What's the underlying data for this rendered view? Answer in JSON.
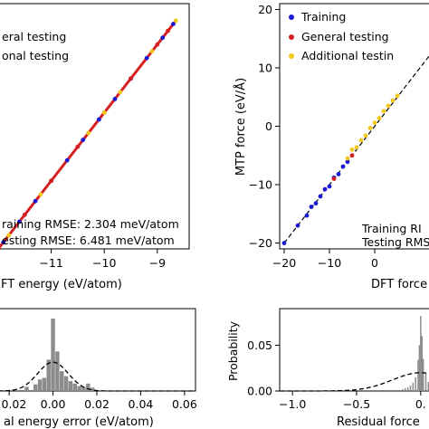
{
  "chart_data": [
    {
      "id": "energy-parity",
      "type": "scatter",
      "title": "",
      "xlabel": "DFT energy (eV/atom)",
      "xlabel_visible": "FT energy (eV/atom)",
      "ylabel": "",
      "xlim": [
        -12.0,
        -8.4
      ],
      "ylim": [
        -12.0,
        -8.4
      ],
      "xticks": [
        {
          "v": -11,
          "label": "−11"
        },
        {
          "v": -10,
          "label": "−10"
        },
        {
          "v": -9,
          "label": "−9"
        }
      ],
      "legend": {
        "placement": "top-left",
        "entries_visible": [
          "",
          "eral testing",
          "onal testing"
        ]
      },
      "annotations": [
        "raining RMSE: 2.304 meV/atom",
        "esting RMSE: 6.481 meV/atom"
      ],
      "series": [
        {
          "name": "Training",
          "color": "#1a1ad4",
          "x": [
            -11.9,
            -11.6,
            -11.3,
            -11.0,
            -10.7,
            -10.4,
            -10.1,
            -9.8,
            -9.5,
            -9.2,
            -8.9,
            -8.7
          ],
          "y": [
            -11.9,
            -11.6,
            -11.3,
            -11.0,
            -10.7,
            -10.4,
            -10.1,
            -9.8,
            -9.5,
            -9.2,
            -8.9,
            -8.7
          ]
        },
        {
          "name": "General testing",
          "color": "#d62020",
          "x": [
            -12.0,
            -11.5,
            -11.0,
            -10.5,
            -10.0,
            -9.5,
            -9.0,
            -8.8
          ],
          "y": [
            -12.0,
            -11.5,
            -11.0,
            -10.5,
            -10.0,
            -9.5,
            -9.0,
            -8.8
          ]
        },
        {
          "name": "Additional testing",
          "color": "#f2c81a",
          "x": [
            -11.8,
            -11.2,
            -10.3,
            -10.0,
            -9.7,
            -9.1,
            -8.65
          ],
          "y": [
            -11.8,
            -11.2,
            -10.3,
            -10.0,
            -9.7,
            -9.1,
            -8.65
          ]
        }
      ]
    },
    {
      "id": "force-parity",
      "type": "scatter",
      "title": "",
      "xlabel": "DFT force",
      "ylabel": "MTP force (eV/Å)",
      "xlim": [
        -21,
        13
      ],
      "ylim": [
        -21,
        21
      ],
      "xticks": [
        {
          "v": -20,
          "label": "−20"
        },
        {
          "v": -10,
          "label": "−10"
        },
        {
          "v": 0,
          "label": "0"
        }
      ],
      "yticks": [
        {
          "v": 20,
          "label": "20"
        },
        {
          "v": 10,
          "label": "10"
        },
        {
          "v": 0,
          "label": "0"
        },
        {
          "v": -10,
          "label": "−10"
        },
        {
          "v": -20,
          "label": "−20"
        }
      ],
      "legend": {
        "placement": "top-left",
        "entries": [
          {
            "label": "Training",
            "color": "#1a1ad4"
          },
          {
            "label": "General testing",
            "color": "#d62020"
          },
          {
            "label": "Additional testin",
            "color": "#f2c81a"
          }
        ]
      },
      "annotations": [
        "Training RI",
        "Testing RMS"
      ],
      "series": [
        {
          "name": "Training",
          "color": "#1a1ad4",
          "x": [
            -20,
            -17,
            -15,
            -14,
            -13,
            -12,
            -11,
            -10,
            -9,
            -8,
            -7,
            -6
          ],
          "y": [
            -20,
            -17,
            -15.3,
            -13.8,
            -13.2,
            -12,
            -10.8,
            -10.3,
            -8.8,
            -8.2,
            -6.9,
            -6.1
          ]
        },
        {
          "name": "General testing",
          "color": "#d62020",
          "x": [
            -9,
            -5
          ],
          "y": [
            -9,
            -5
          ]
        },
        {
          "name": "Additional testing",
          "color": "#f2c81a",
          "x": [
            -6,
            -5,
            -4,
            -3,
            -2,
            -1,
            0,
            1,
            2,
            3,
            4,
            5
          ],
          "y": [
            -5.5,
            -4,
            -3.6,
            -2.4,
            -1.6,
            -0.3,
            0.6,
            1.4,
            2.6,
            3.5,
            4.4,
            5.2
          ]
        }
      ],
      "reference_line": "y = x (dashed)"
    },
    {
      "id": "energy-error-hist",
      "type": "bar",
      "title": "",
      "xlabel_visible": "al energy error (eV/atom)",
      "ylabel": "",
      "xlim": [
        -0.025,
        0.065
      ],
      "xticks": [
        {
          "v": -0.02,
          "label": "−0.02"
        },
        {
          "v": 0.0,
          "label": "0.00"
        },
        {
          "v": 0.02,
          "label": "0.02"
        },
        {
          "v": 0.04,
          "label": "0.04"
        },
        {
          "v": 0.06,
          "label": "0.06"
        }
      ],
      "ylim": [
        0,
        1
      ],
      "bins": [
        {
          "x": -0.012,
          "h": 0.05
        },
        {
          "x": -0.008,
          "h": 0.08
        },
        {
          "x": -0.006,
          "h": 0.14
        },
        {
          "x": -0.004,
          "h": 0.16
        },
        {
          "x": -0.002,
          "h": 0.38
        },
        {
          "x": 0.0,
          "h": 0.88
        },
        {
          "x": 0.002,
          "h": 0.48
        },
        {
          "x": 0.004,
          "h": 0.24
        },
        {
          "x": 0.006,
          "h": 0.18
        },
        {
          "x": 0.008,
          "h": 0.12
        },
        {
          "x": 0.01,
          "h": 0.09
        },
        {
          "x": 0.012,
          "h": 0.06
        },
        {
          "x": 0.014,
          "h": 0.05
        },
        {
          "x": 0.016,
          "h": 0.09
        },
        {
          "x": 0.018,
          "h": 0.04
        }
      ],
      "gaussian": {
        "mean": 0.0,
        "sd": 0.007,
        "peak": 0.35
      },
      "bar_color": "#8c8c8c"
    },
    {
      "id": "force-error-hist",
      "type": "bar",
      "title": "",
      "xlabel_visible": "Residual force",
      "ylabel": "Probability",
      "xlim": [
        -1.1,
        0.1
      ],
      "ylim": [
        0,
        0.09
      ],
      "xticks": [
        {
          "v": -1.0,
          "label": "−1.0"
        },
        {
          "v": -0.5,
          "label": "−0.5"
        },
        {
          "v": 0.0,
          "label": "0."
        }
      ],
      "yticks": [
        {
          "v": 0.0,
          "label": "0.00"
        },
        {
          "v": 0.05,
          "label": "0.05"
        }
      ],
      "bins": [
        {
          "x": -0.14,
          "h": 0.002
        },
        {
          "x": -0.12,
          "h": 0.003
        },
        {
          "x": -0.1,
          "h": 0.004
        },
        {
          "x": -0.08,
          "h": 0.006
        },
        {
          "x": -0.06,
          "h": 0.009
        },
        {
          "x": -0.04,
          "h": 0.015
        },
        {
          "x": -0.02,
          "h": 0.034
        },
        {
          "x": -0.01,
          "h": 0.05
        },
        {
          "x": 0.0,
          "h": 0.082
        },
        {
          "x": 0.01,
          "h": 0.06
        },
        {
          "x": 0.02,
          "h": 0.035
        },
        {
          "x": 0.04,
          "h": 0.02
        },
        {
          "x": 0.06,
          "h": 0.01
        }
      ],
      "gaussian": {
        "mean": 0.0,
        "sd": 0.22,
        "peak": 0.02
      },
      "bar_color": "#8c8c8c"
    }
  ]
}
